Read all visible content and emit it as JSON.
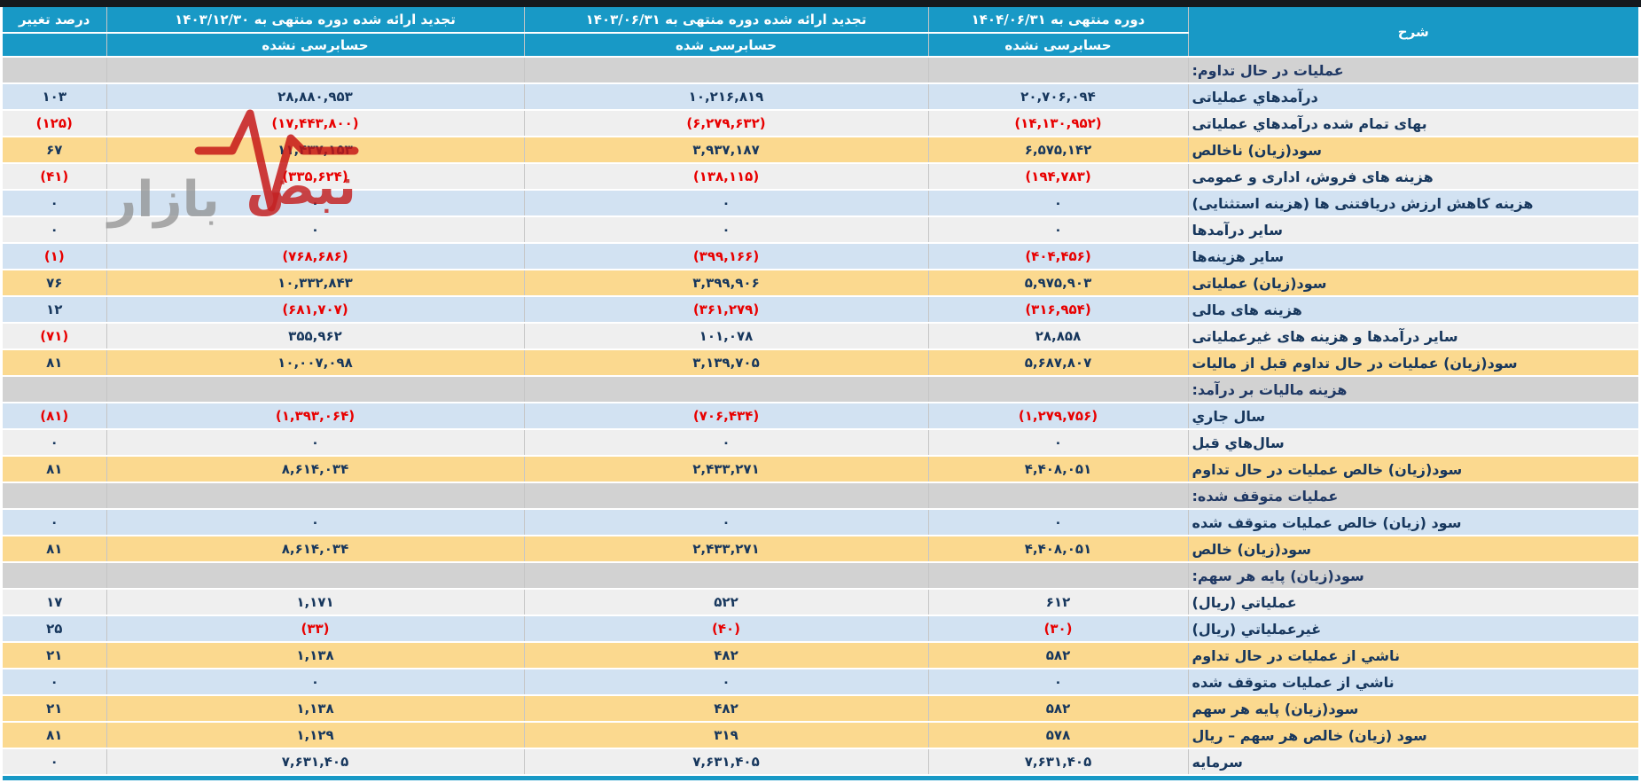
{
  "header": {
    "col_desc": "شرح",
    "col_change": "درصد تغییر",
    "periods": [
      {
        "title": "دوره منتهی به ۱۴۰۴/۰۶/۳۱",
        "audit": "حسابرسی نشده"
      },
      {
        "title": "تجدید ارائه شده دوره منتهی به ۱۴۰۳/۰۶/۳۱",
        "audit": "حسابرسی شده"
      },
      {
        "title": "تجدید ارائه شده دوره منتهی به ۱۴۰۳/۱۲/۳۰",
        "audit": "حسابرسی نشده"
      }
    ]
  },
  "rows": [
    {
      "type": "section",
      "label": "عملیات در حال تداوم:"
    },
    {
      "type": "data",
      "tone": "blue",
      "label": "درآمدهاي عملیاتی",
      "values": [
        "۲۰,۷۰۶,۰۹۴",
        "۱۰,۲۱۶,۸۱۹",
        "۲۸,۸۸۰,۹۵۳"
      ],
      "change": "۱۰۳"
    },
    {
      "type": "data",
      "tone": "white",
      "label": "بهای تمام شده درآمدهاي عملیاتی",
      "values": [
        "(۱۴,۱۳۰,۹۵۲)",
        "(۶,۲۷۹,۶۳۲)",
        "(۱۷,۴۴۳,۸۰۰)"
      ],
      "change": "(۱۲۵)"
    },
    {
      "type": "data",
      "tone": "yellow",
      "label": "سود(زیان) ناخالص",
      "values": [
        "۶,۵۷۵,۱۴۲",
        "۳,۹۳۷,۱۸۷",
        "۱۱,۴۳۷,۱۵۳"
      ],
      "change": "۶۷"
    },
    {
      "type": "data",
      "tone": "white",
      "label": "هزینه های فروش، اداری و عمومی",
      "values": [
        "(۱۹۴,۷۸۳)",
        "(۱۳۸,۱۱۵)",
        "(۳۳۵,۶۲۴)"
      ],
      "change": "(۴۱)"
    },
    {
      "type": "data",
      "tone": "blue",
      "label": "هزینه کاهش ارزش دریافتنی ها (هزینه استثنایی)",
      "values": [
        "۰",
        "۰",
        "۰"
      ],
      "change": "۰"
    },
    {
      "type": "data",
      "tone": "white",
      "label": "سایر درآمدها",
      "values": [
        "۰",
        "۰",
        "۰"
      ],
      "change": "۰"
    },
    {
      "type": "data",
      "tone": "blue",
      "label": "سایر هزینه‌ها",
      "values": [
        "(۴۰۴,۴۵۶)",
        "(۳۹۹,۱۶۶)",
        "(۷۶۸,۶۸۶)"
      ],
      "change": "(۱)"
    },
    {
      "type": "data",
      "tone": "yellow",
      "label": "سود(زیان) عملیاتی",
      "values": [
        "۵,۹۷۵,۹۰۳",
        "۳,۳۹۹,۹۰۶",
        "۱۰,۳۳۲,۸۴۳"
      ],
      "change": "۷۶"
    },
    {
      "type": "data",
      "tone": "blue",
      "label": "هزینه های مالی",
      "values": [
        "(۳۱۶,۹۵۴)",
        "(۳۶۱,۲۷۹)",
        "(۶۸۱,۷۰۷)"
      ],
      "change": "۱۲"
    },
    {
      "type": "data",
      "tone": "white",
      "label": "سایر درآمدها و هزینه های غیرعملیاتی",
      "values": [
        "۲۸,۸۵۸",
        "۱۰۱,۰۷۸",
        "۳۵۵,۹۶۲"
      ],
      "change": "(۷۱)"
    },
    {
      "type": "data",
      "tone": "yellow",
      "label": "سود(زیان) عملیات در حال تداوم قبل از مالیات",
      "values": [
        "۵,۶۸۷,۸۰۷",
        "۳,۱۳۹,۷۰۵",
        "۱۰,۰۰۷,۰۹۸"
      ],
      "change": "۸۱"
    },
    {
      "type": "section",
      "label": "هزینه مالیات بر درآمد:"
    },
    {
      "type": "data",
      "tone": "blue",
      "label": "سال جاري",
      "values": [
        "(۱,۲۷۹,۷۵۶)",
        "(۷۰۶,۴۳۴)",
        "(۱,۳۹۳,۰۶۴)"
      ],
      "change": "(۸۱)"
    },
    {
      "type": "data",
      "tone": "white",
      "label": "سال‌هاي قبل",
      "values": [
        "۰",
        "۰",
        "۰"
      ],
      "change": "۰"
    },
    {
      "type": "data",
      "tone": "yellow",
      "label": "سود(زیان) خالص عملیات در حال تداوم",
      "values": [
        "۴,۴۰۸,۰۵۱",
        "۲,۴۳۳,۲۷۱",
        "۸,۶۱۴,۰۳۴"
      ],
      "change": "۸۱"
    },
    {
      "type": "section",
      "label": "عملیات متوقف شده:"
    },
    {
      "type": "data",
      "tone": "blue",
      "label": "سود (زیان) خالص عملیات متوقف شده",
      "values": [
        "۰",
        "۰",
        "۰"
      ],
      "change": "۰"
    },
    {
      "type": "data",
      "tone": "yellow",
      "label": "سود(زیان) خالص",
      "values": [
        "۴,۴۰۸,۰۵۱",
        "۲,۴۳۳,۲۷۱",
        "۸,۶۱۴,۰۳۴"
      ],
      "change": "۸۱"
    },
    {
      "type": "section",
      "label": "سود(زیان) پایه هر سهم:"
    },
    {
      "type": "data",
      "tone": "white",
      "label": "عملیاتي (ریال)",
      "values": [
        "۶۱۲",
        "۵۲۲",
        "۱,۱۷۱"
      ],
      "change": "۱۷"
    },
    {
      "type": "data",
      "tone": "blue",
      "label": "غیرعملیاتي (ریال)",
      "values": [
        "(۳۰)",
        "(۴۰)",
        "(۳۳)"
      ],
      "change": "۲۵"
    },
    {
      "type": "data",
      "tone": "yellow",
      "label": "ناشي از عملیات در حال تداوم",
      "values": [
        "۵۸۲",
        "۴۸۲",
        "۱,۱۳۸"
      ],
      "change": "۲۱"
    },
    {
      "type": "data",
      "tone": "blue",
      "label": "ناشي از عملیات متوقف شده",
      "values": [
        "۰",
        "۰",
        "۰"
      ],
      "change": "۰"
    },
    {
      "type": "data",
      "tone": "yellow",
      "label": "سود(زیان) پایه هر سهم",
      "values": [
        "۵۸۲",
        "۴۸۲",
        "۱,۱۳۸"
      ],
      "change": "۲۱"
    },
    {
      "type": "data",
      "tone": "yellow",
      "label": "سود (زیان) خالص هر سهم – ریال",
      "values": [
        "۵۷۸",
        "۳۱۹",
        "۱,۱۲۹"
      ],
      "change": "۸۱"
    },
    {
      "type": "data",
      "tone": "white",
      "label": "سرمایه",
      "values": [
        "۷,۶۳۱,۴۰۵",
        "۷,۶۳۱,۴۰۵",
        "۷,۶۳۱,۴۰۵"
      ],
      "change": "۰"
    }
  ],
  "watermark": {
    "word1": "نبض",
    "word2": "بازار"
  },
  "colors": {
    "header_bg": "#1899C6",
    "row_blue": "#D2E2F2",
    "row_yellow": "#FBD98F",
    "row_white": "#EFEFEF",
    "section_bg": "#D2D2D2",
    "text_navy": "#17375D",
    "section_text": "#1F3864",
    "negative_red": "#E80000",
    "border_gray": "#C6C6C6",
    "top_bar": "#15191D",
    "watermark_red": "#C41414",
    "watermark_gray": "#8F8F8F"
  }
}
